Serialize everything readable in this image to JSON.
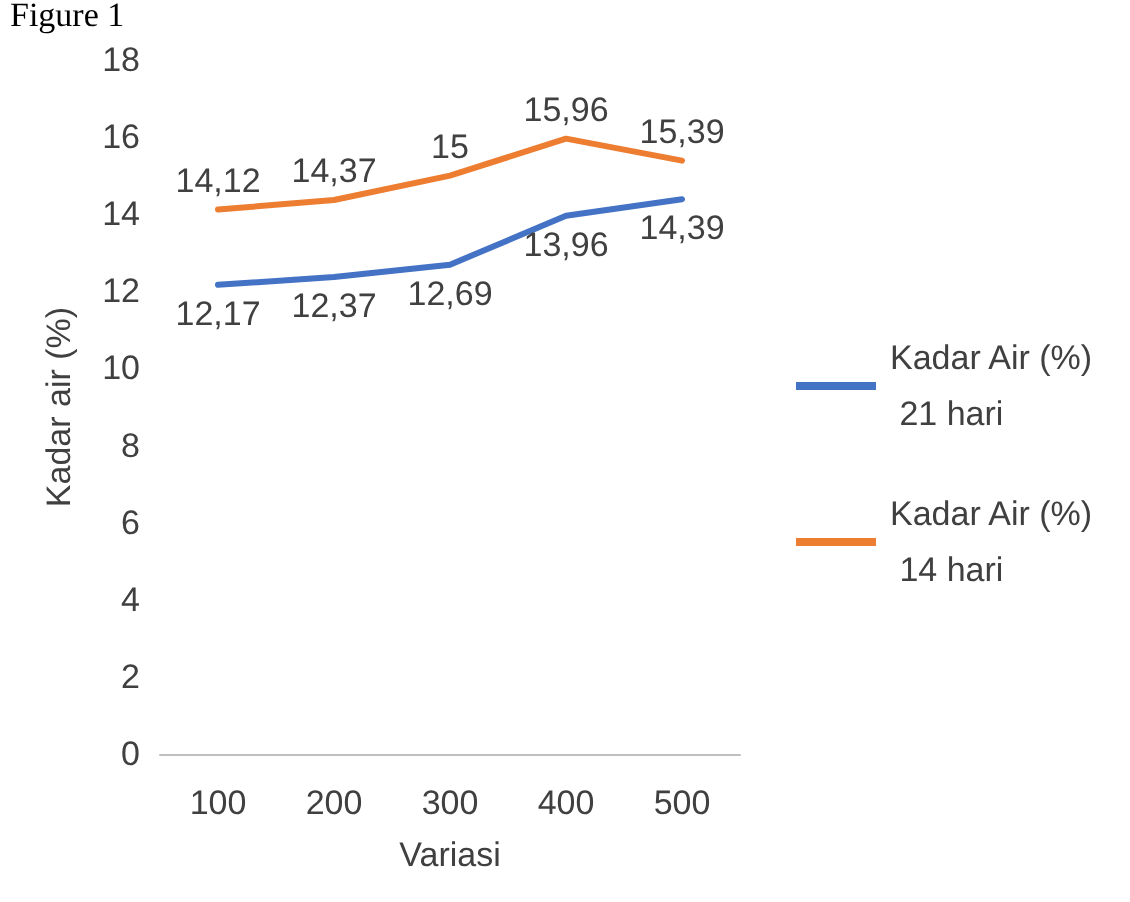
{
  "chart_data": {
    "type": "line",
    "title": "Figure 1",
    "xlabel": "Variasi",
    "ylabel": "Kadar air (%)",
    "categories": [
      "100",
      "200",
      "300",
      "400",
      "500"
    ],
    "series": [
      {
        "name": "Kadar Air (%) 21 hari",
        "color": "#4472c4",
        "values": [
          12.17,
          12.37,
          12.69,
          13.96,
          14.39
        ],
        "value_labels": [
          "12,17",
          "12,37",
          "12,69",
          "13,96",
          "14,39"
        ]
      },
      {
        "name": "Kadar Air (%) 14 hari",
        "color": "#ed7d31",
        "values": [
          14.12,
          14.37,
          15,
          15.96,
          15.39
        ],
        "value_labels": [
          "14,12",
          "14,37",
          "15",
          "15,96",
          "15,39"
        ]
      }
    ],
    "ylim": [
      0,
      18
    ],
    "yticks": [
      0,
      2,
      4,
      6,
      8,
      10,
      12,
      14,
      16,
      18
    ],
    "grid": false,
    "legend": "right",
    "marker": "none",
    "line_style": "solid"
  }
}
